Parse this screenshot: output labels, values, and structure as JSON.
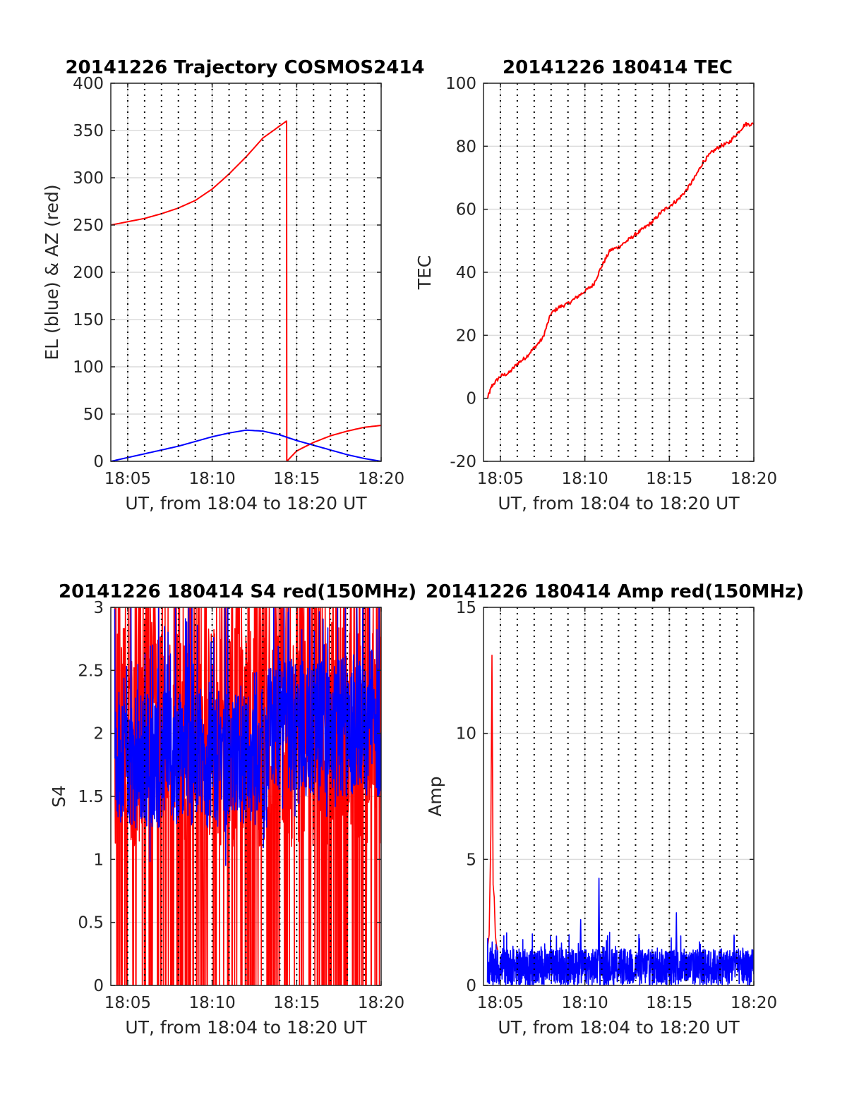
{
  "chart_data": [
    {
      "type": "line",
      "title": "20141226 Trajectory COSMOS2414",
      "xlabel": "UT, from 18:04 to 18:20 UT",
      "ylabel": "EL (blue) & AZ (red)",
      "xlim": [
        "18:04",
        "18:20"
      ],
      "ylim": [
        0,
        400
      ],
      "xticks": [
        "18:05",
        "18:10",
        "18:15",
        "18:20"
      ],
      "yticks": [
        0,
        50,
        100,
        150,
        200,
        250,
        300,
        350,
        400
      ],
      "grid": true,
      "minor_time_grid": "1 min dotted",
      "series": [
        {
          "color": "#ff0000",
          "x": [
            "18:04:00",
            "18:06:00",
            "18:07:00",
            "18:08:00",
            "18:09:00",
            "18:10:00",
            "18:11:00",
            "18:12:00",
            "18:13:00",
            "18:14:24",
            "18:14:25",
            "18:15:00",
            "18:16:00",
            "18:17:00",
            "18:18:00",
            "18:19:00",
            "18:20:00"
          ],
          "y": [
            250,
            257,
            262,
            268,
            276,
            288,
            304,
            322,
            342,
            360,
            0,
            11,
            20,
            27,
            32,
            36,
            38
          ]
        },
        {
          "color": "#0000ff",
          "x": [
            "18:04:00",
            "18:05:00",
            "18:06:00",
            "18:07:00",
            "18:08:00",
            "18:09:00",
            "18:10:00",
            "18:11:00",
            "18:12:00",
            "18:13:00",
            "18:14:00",
            "18:15:00",
            "18:16:00",
            "18:17:00",
            "18:18:00",
            "18:19:00",
            "18:20:00"
          ],
          "y": [
            0,
            4,
            8,
            12,
            16,
            21,
            26,
            30,
            33,
            32,
            28,
            22,
            17,
            12,
            7,
            3,
            0
          ]
        }
      ]
    },
    {
      "type": "line",
      "title": "20141226 180414 TEC",
      "xlabel": "UT, from 18:04 to 18:20 UT",
      "ylabel": "TEC",
      "xlim": [
        "18:04",
        "18:20"
      ],
      "ylim": [
        -20,
        100
      ],
      "xticks": [
        "18:05",
        "18:10",
        "18:15",
        "18:20"
      ],
      "yticks": [
        -20,
        0,
        20,
        40,
        60,
        80,
        100
      ],
      "grid": true,
      "minor_time_grid": "1 min dotted",
      "series": [
        {
          "color": "#ff0000",
          "x": [
            "18:04:14",
            "18:04:30",
            "18:05:00",
            "18:05:30",
            "18:06:00",
            "18:06:30",
            "18:07:00",
            "18:07:30",
            "18:08:00",
            "18:08:30",
            "18:09:00",
            "18:09:30",
            "18:10:00",
            "18:10:30",
            "18:11:00",
            "18:11:30",
            "18:12:00",
            "18:12:30",
            "18:13:00",
            "18:13:30",
            "18:14:00",
            "18:14:30",
            "18:15:00",
            "18:15:30",
            "18:16:00",
            "18:16:30",
            "18:17:00",
            "18:17:30",
            "18:18:00",
            "18:18:30",
            "18:19:00",
            "18:19:30",
            "18:20:00"
          ],
          "y": [
            0,
            4,
            7,
            8,
            11,
            13,
            16,
            19,
            27,
            29,
            30,
            32,
            34,
            36,
            42,
            47,
            48,
            50,
            52,
            54,
            56,
            59,
            61,
            63,
            66,
            70,
            75,
            78,
            80,
            81,
            84,
            87,
            87
          ]
        }
      ]
    },
    {
      "type": "line",
      "title": "20141226 180414 S4 red(150MHz)",
      "xlabel": "UT, from 18:04 to 18:20 UT",
      "ylabel": "S4",
      "xlim": [
        "18:04",
        "18:20"
      ],
      "ylim": [
        0,
        3
      ],
      "xticks": [
        "18:05",
        "18:10",
        "18:15",
        "18:20"
      ],
      "yticks": [
        0,
        0.5,
        1,
        1.5,
        2,
        2.5,
        3
      ],
      "grid": true,
      "minor_time_grid": "1 min dotted",
      "series": [
        {
          "color": "#ff0000",
          "x_range": [
            "18:04:14",
            "18:20:00"
          ],
          "y_range": [
            0,
            3
          ],
          "y_typical": 1.6
        },
        {
          "color": "#0000ff",
          "x_range": [
            "18:04:14",
            "18:20:00"
          ],
          "y_range": [
            0.96,
            3
          ],
          "y_typical": 1.7
        }
      ]
    },
    {
      "type": "line",
      "title": "20141226 180414 Amp red(150MHz)",
      "xlabel": "UT, from 18:04 to 18:20 UT",
      "ylabel": "Amp",
      "xlim": [
        "18:04",
        "18:20"
      ],
      "ylim": [
        0,
        15
      ],
      "xticks": [
        "18:05",
        "18:10",
        "18:15",
        "18:20"
      ],
      "yticks": [
        0,
        5,
        10,
        15
      ],
      "grid": true,
      "minor_time_grid": "1 min dotted",
      "series": [
        {
          "color": "#ff0000",
          "x": [
            "18:04:14",
            "18:04:20",
            "18:04:26",
            "18:04:30",
            "18:04:34",
            "18:04:38",
            "18:04:42",
            "18:04:46",
            "18:04:50"
          ],
          "y": [
            1.5,
            2.0,
            6.0,
            13.1,
            4.0,
            3.5,
            2.0,
            1.6,
            1.4
          ]
        },
        {
          "color": "#0000ff",
          "x_range": [
            "18:04:14",
            "18:20:00"
          ],
          "y_typical": [
            0,
            1.8
          ],
          "peaks": [
            {
              "x": "18:10:50",
              "y": 4.3
            },
            {
              "x": "18:15:25",
              "y": 2.9
            },
            {
              "x": "18:09:45",
              "y": 2.7
            },
            {
              "x": "18:18:50",
              "y": 2.2
            }
          ]
        }
      ]
    }
  ]
}
